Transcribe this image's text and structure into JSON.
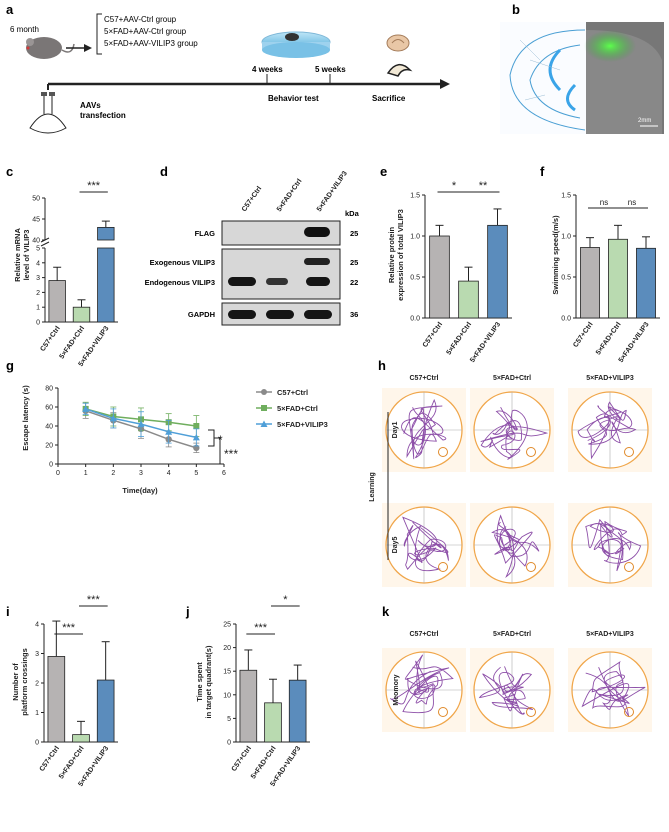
{
  "panels": {
    "a": "a",
    "b": "b",
    "c": "c",
    "d": "d",
    "e": "e",
    "f": "f",
    "g": "g",
    "h": "h",
    "i": "i",
    "j": "j",
    "k": "k"
  },
  "a": {
    "age": "6 month",
    "groups": [
      "C57+AAV-Ctrl group",
      "5×FAD+AAV-Ctrl group",
      "5×FAD+AAV-VILIP3 group"
    ],
    "t4": "4 weeks",
    "t5": "5 weeks",
    "behavior": "Behavior test",
    "sacrifice": "Sacrifice",
    "aavs1": "AAVs",
    "aavs2": "transfection"
  },
  "b": {
    "scale": "2mm"
  },
  "colors": {
    "c57": "#b6b3b3",
    "fad": "#b9dab0",
    "vilip": "#5b8cbc"
  },
  "c": {
    "ylabel1": "Relative mRNA",
    "ylabel2": "level of VILIP3",
    "sig": "***",
    "chart_data": {
      "type": "bar",
      "categories": [
        "C57+Ctrl",
        "5×FAD+Ctrl",
        "5×FAD+VILIP3"
      ],
      "values": [
        2.8,
        1.0,
        43.0
      ],
      "errors": [
        0.9,
        0.5,
        1.5
      ],
      "yticks_low": [
        "0",
        "1",
        "2",
        "3",
        "4",
        "5"
      ],
      "yticks_high": [
        "40",
        "45",
        "50"
      ],
      "ybreak": [
        5,
        40
      ]
    }
  },
  "d": {
    "lanes": [
      "C57+Ctrl",
      "5×FAD+Ctrl",
      "5×FAD+VILIP3"
    ],
    "kda": "kDa",
    "rows": [
      {
        "label": "FLAG",
        "kda": "25"
      },
      {
        "label": "Exogenous VILIP3",
        "kda": "25"
      },
      {
        "label": "Endogenous VILIP3",
        "kda": "22"
      },
      {
        "label": "GAPDH",
        "kda": "36"
      }
    ]
  },
  "e": {
    "ylabel1": "Relative protein",
    "ylabel2": "expression of total VILIP3",
    "sig1": "*",
    "sig2": "**",
    "chart_data": {
      "type": "bar",
      "categories": [
        "C57+Ctrl",
        "5×FAD+Ctrl",
        "5×FAD+VILIP3"
      ],
      "values": [
        1.0,
        0.45,
        1.13
      ],
      "errors": [
        0.13,
        0.17,
        0.2
      ],
      "ylim": [
        0,
        1.5
      ],
      "yticks": [
        "0.0",
        "0.5",
        "1.0",
        "1.5"
      ]
    }
  },
  "f": {
    "ylabel": "Swimming speed(m/s)",
    "sig1": "ns",
    "sig2": "ns",
    "chart_data": {
      "type": "bar",
      "categories": [
        "C57+Ctrl",
        "5×FAD+Ctrl",
        "5×FAD+VILIP3"
      ],
      "values": [
        0.86,
        0.96,
        0.85
      ],
      "errors": [
        0.12,
        0.17,
        0.14
      ],
      "ylim": [
        0,
        1.5
      ],
      "yticks": [
        "0.0",
        "0.5",
        "1.0",
        "1.5"
      ]
    }
  },
  "g": {
    "ylabel": "Escape latency (s)",
    "xlabel": "Time(day)",
    "sig1": "*",
    "sig2": "***",
    "chart_data": {
      "type": "line",
      "x": [
        1,
        2,
        3,
        4,
        5
      ],
      "xlim": [
        0,
        6
      ],
      "ylim": [
        0,
        80
      ],
      "xticks": [
        "0",
        "1",
        "2",
        "3",
        "4",
        "5",
        "6"
      ],
      "yticks": [
        "0",
        "20",
        "40",
        "60",
        "80"
      ],
      "series": [
        {
          "name": "C57+Ctrl",
          "values": [
            56,
            46,
            37,
            26,
            17
          ],
          "errors": [
            8,
            8,
            10,
            8,
            5
          ]
        },
        {
          "name": "5×FAD+Ctrl",
          "values": [
            58,
            50,
            47,
            44,
            40
          ],
          "errors": [
            7,
            10,
            12,
            9,
            11
          ]
        },
        {
          "name": "5×FAD+VILIP3",
          "values": [
            58,
            48,
            42,
            34,
            28
          ],
          "errors": [
            6,
            10,
            13,
            12,
            9
          ]
        }
      ]
    }
  },
  "h": {
    "cols": [
      "C57+Ctrl",
      "5×FAD+Ctrl",
      "5×FAD+VILIP3"
    ],
    "rows": [
      "Day1",
      "Day5"
    ],
    "side": "Learning"
  },
  "i": {
    "ylabel1": "Number of",
    "ylabel2": "platform crossings",
    "sig1": "***",
    "sig2": "***",
    "chart_data": {
      "type": "bar",
      "categories": [
        "C57+Ctrl",
        "5×FAD+Ctrl",
        "5×FAD+VILIP3"
      ],
      "values": [
        2.9,
        0.25,
        2.1
      ],
      "errors": [
        1.2,
        0.45,
        1.3
      ],
      "ylim": [
        0,
        4
      ],
      "yticks": [
        "0",
        "1",
        "2",
        "3",
        "4"
      ]
    }
  },
  "j": {
    "ylabel1": "Time spent",
    "ylabel2": "in target quadrant(s)",
    "sig1": "***",
    "sig2": "*",
    "chart_data": {
      "type": "bar",
      "categories": [
        "C57+Ctrl",
        "5×FAD+Ctrl",
        "5×FAD+VILIP3"
      ],
      "values": [
        15.2,
        8.3,
        13.1
      ],
      "errors": [
        4.3,
        5.0,
        3.2
      ],
      "ylim": [
        0,
        25
      ],
      "yticks": [
        "0",
        "5",
        "10",
        "15",
        "20",
        "25"
      ]
    }
  },
  "k": {
    "cols": [
      "C57+Ctrl",
      "5×FAD+Ctrl",
      "5×FAD+VILIP3"
    ],
    "side": "Meomory"
  }
}
